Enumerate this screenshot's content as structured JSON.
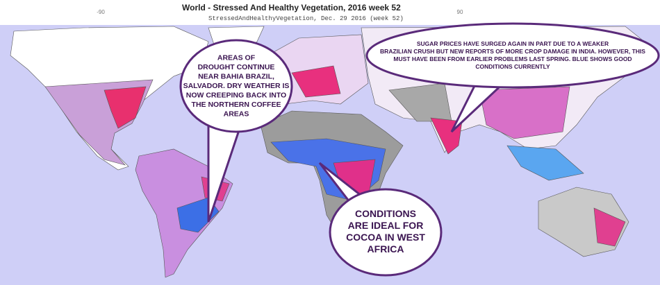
{
  "header": {
    "title": "World - Stressed And Healthy Vegetation, 2016 week 52",
    "subtitle": "StressedAndHealthyVegetation, Dec. 29 2016 (week 52)"
  },
  "axis_labels": [
    "-90",
    "90"
  ],
  "callouts": [
    {
      "lines": [
        "AREAS OF",
        "DROUGHT CONTINUE",
        "NEAR BAHIA BRAZIL,",
        "SALVADOR. DRY WEATHER IS",
        "NOW CREEPING BACK INTO",
        "THE NORTHERN COFFEE",
        "AREAS"
      ]
    },
    {
      "lines": [
        "SUGAR PRICES HAVE SURGED AGAIN IN PART DUE TO A WEAKER",
        "BRAZILIAN CRUSH BUT NEW REPORTS OF MORE CROP DAMAGE IN INDIA. HOWEVER, THIS",
        "MUST HAVE BEEN FROM EARLIER PROBLEMS LAST SPRING. BLUE SHOWS GOOD",
        "CONDITIONS CURRENTLY"
      ]
    },
    {
      "lines": [
        "CONDITIONS",
        "ARE IDEAL FOR",
        "COCOA IN WEST",
        "AFRICA"
      ]
    }
  ]
}
